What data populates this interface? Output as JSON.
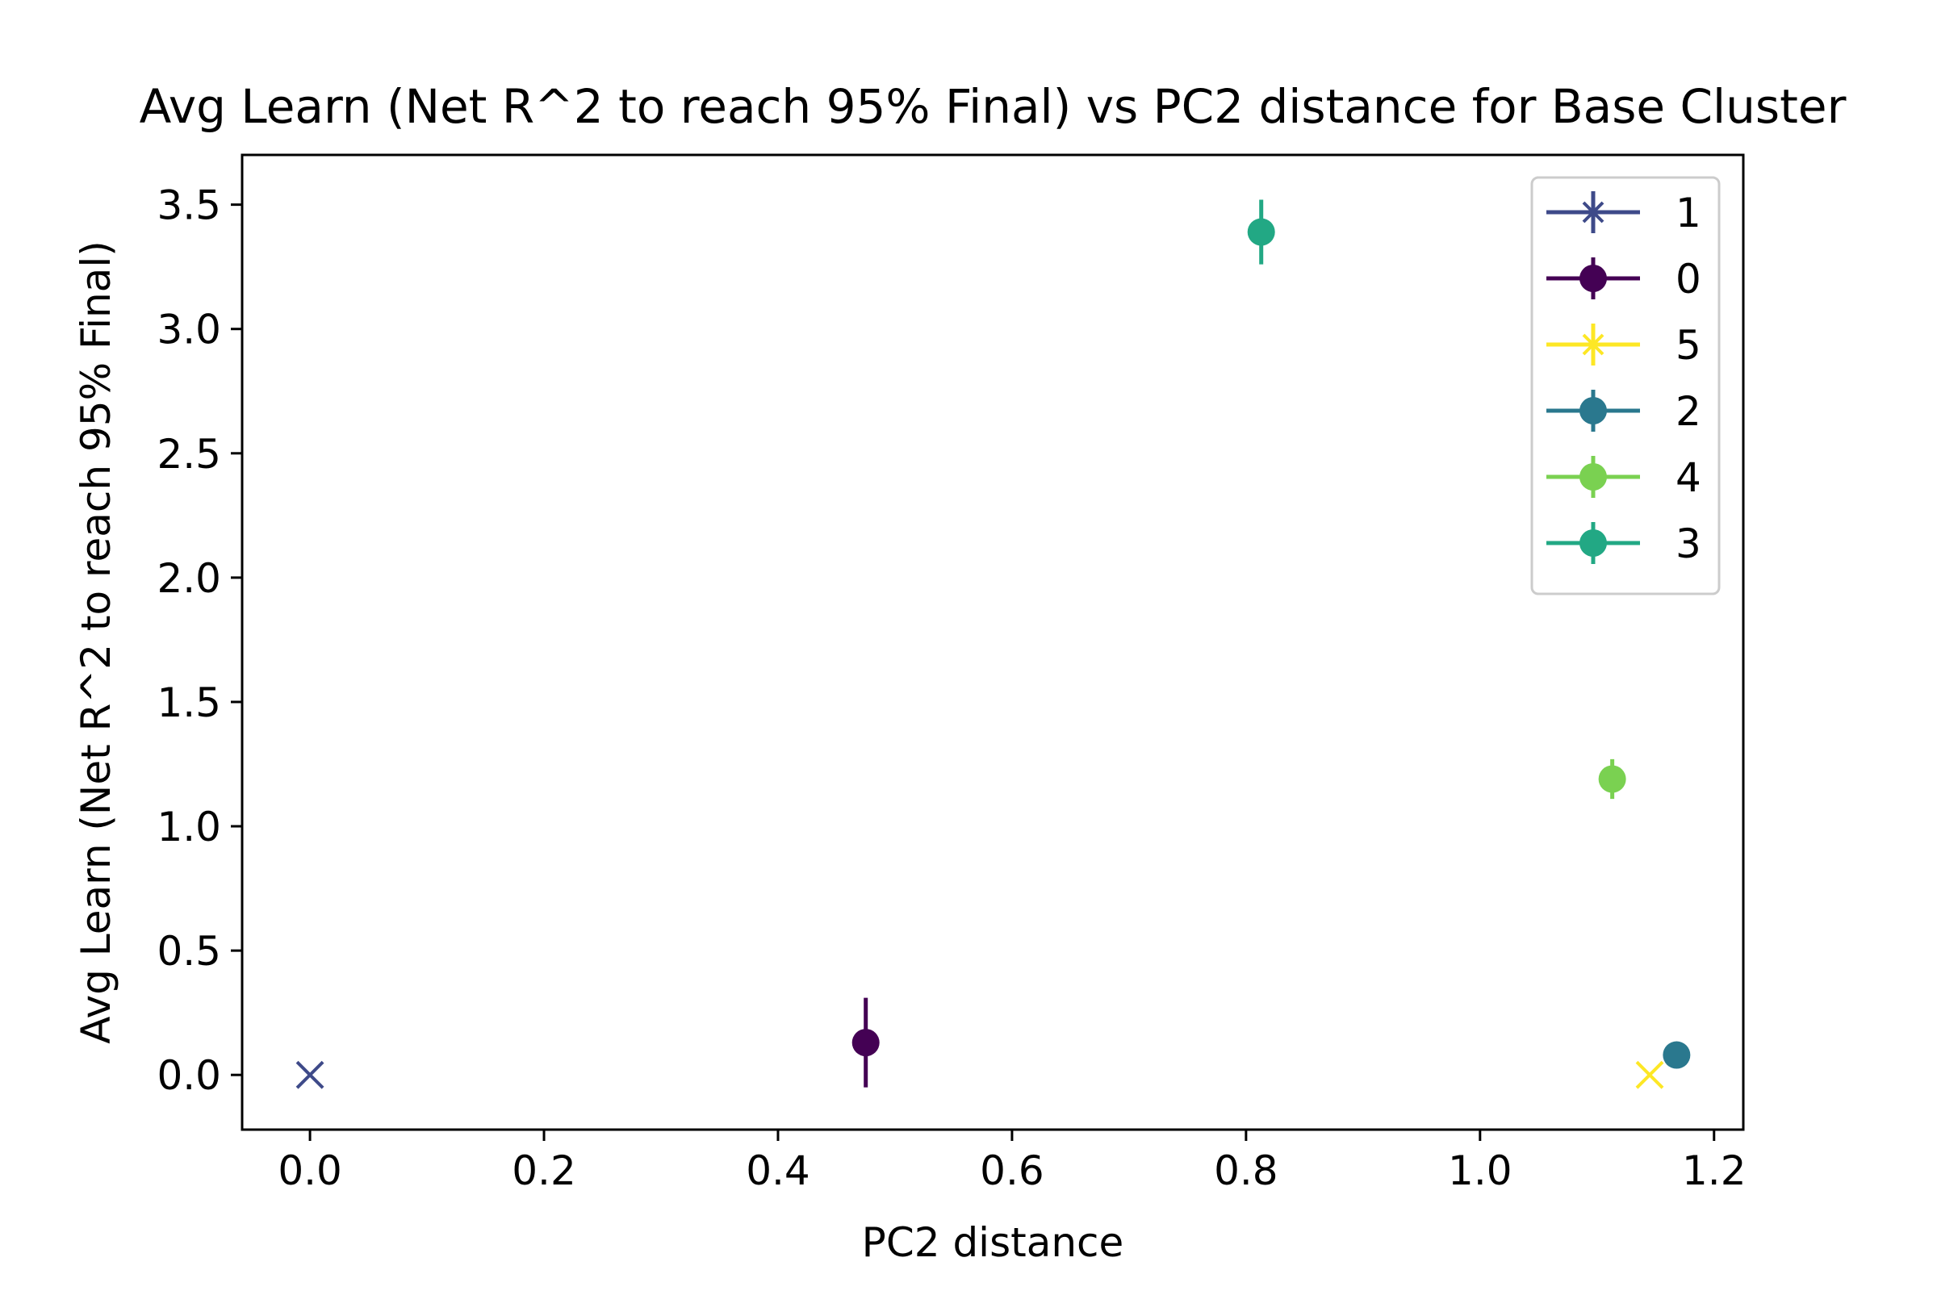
{
  "chart_data": {
    "type": "scatter",
    "title": "Avg Learn (Net R^2 to reach 95% Final) vs PC2 distance for Base Cluster",
    "xlabel": "PC2 distance",
    "ylabel": "Avg Learn (Net R^2 to reach 95% Final)",
    "xlim": [
      -0.058,
      1.225
    ],
    "ylim": [
      -0.22,
      3.7
    ],
    "xticks": [
      "0.0",
      "0.2",
      "0.4",
      "0.6",
      "0.8",
      "1.0",
      "1.2"
    ],
    "yticks": [
      "0.0",
      "0.5",
      "1.0",
      "1.5",
      "2.0",
      "2.5",
      "3.0",
      "3.5"
    ],
    "grid": false,
    "legend_position": "top-right",
    "series": [
      {
        "name": "1",
        "color": "#3e4a89",
        "marker": "x",
        "legend_marker": "star",
        "x": 0.0,
        "y": 0.0,
        "yerr": 0.0
      },
      {
        "name": "0",
        "color": "#440154",
        "marker": "circle",
        "x": 0.475,
        "y": 0.13,
        "yerr": 0.18
      },
      {
        "name": "5",
        "color": "#fde725",
        "marker": "x",
        "legend_marker": "star",
        "x": 1.145,
        "y": 0.0,
        "yerr": 0.0
      },
      {
        "name": "2",
        "color": "#2a788e",
        "marker": "circle",
        "x": 1.168,
        "y": 0.08,
        "yerr": 0.0
      },
      {
        "name": "4",
        "color": "#7ad151",
        "marker": "circle",
        "x": 1.113,
        "y": 1.19,
        "yerr": 0.08
      },
      {
        "name": "3",
        "color": "#22a884",
        "marker": "circle",
        "x": 0.813,
        "y": 3.39,
        "yerr": 0.13
      }
    ]
  }
}
